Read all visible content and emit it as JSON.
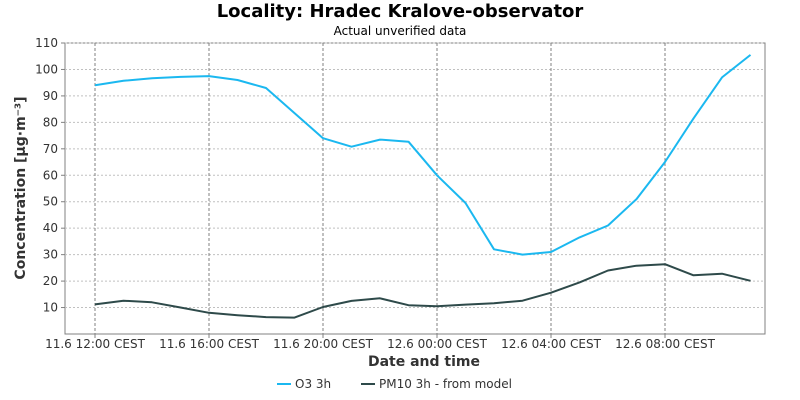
{
  "chart_data": {
    "type": "line",
    "title": "Locality: Hradec Kralove-observator",
    "subtitle": "Actual unverified data",
    "xlabel": "Date and time",
    "ylabel": "Concentration [µg·m⁻³]",
    "ylim": [
      0,
      110
    ],
    "y_ticks": [
      10,
      20,
      30,
      40,
      50,
      60,
      70,
      80,
      90,
      100,
      110
    ],
    "x": [
      "11.6 12:00 CEST",
      "11.6 13:00 CEST",
      "11.6 14:00 CEST",
      "11.6 15:00 CEST",
      "11.6 16:00 CEST",
      "11.6 17:00 CEST",
      "11.6 18:00 CEST",
      "11.6 19:00 CEST",
      "11.6 20:00 CEST",
      "11.6 21:00 CEST",
      "11.6 22:00 CEST",
      "11.6 23:00 CEST",
      "12.6 00:00 CEST",
      "12.6 01:00 CEST",
      "12.6 02:00 CEST",
      "12.6 03:00 CEST",
      "12.6 04:00 CEST",
      "12.6 05:00 CEST",
      "12.6 06:00 CEST",
      "12.6 07:00 CEST",
      "12.6 08:00 CEST",
      "12.6 09:00 CEST",
      "12.6 10:00 CEST",
      "12.6 11:00 CEST"
    ],
    "x_tick_labels": [
      "11.6 12:00 CEST",
      "11.6 16:00 CEST",
      "11.6 20:00 CEST",
      "12.6 00:00 CEST",
      "12.6 04:00 CEST",
      "12.6 08:00 CEST"
    ],
    "series": [
      {
        "name": "O3 3h",
        "color": "#1bb8f0",
        "values": [
          94,
          95.7,
          96.7,
          97.2,
          97.5,
          96,
          93,
          83.5,
          74,
          70.8,
          73.5,
          72.7,
          60,
          49.5,
          32,
          30,
          31,
          36.5,
          41,
          51,
          65,
          81.5,
          97,
          105.5
        ]
      },
      {
        "name": "PM10 3h - from model",
        "color": "#2e4a4a",
        "values": [
          11.2,
          12.6,
          12,
          10,
          8,
          7.1,
          6.4,
          6.2,
          10.2,
          12.5,
          13.5,
          10.9,
          10.5,
          11.1,
          11.6,
          12.6,
          15.6,
          19.5,
          24,
          25.8,
          26.4,
          22.2,
          22.8,
          20.1
        ]
      }
    ],
    "grid": true,
    "legend_position": "bottom"
  }
}
